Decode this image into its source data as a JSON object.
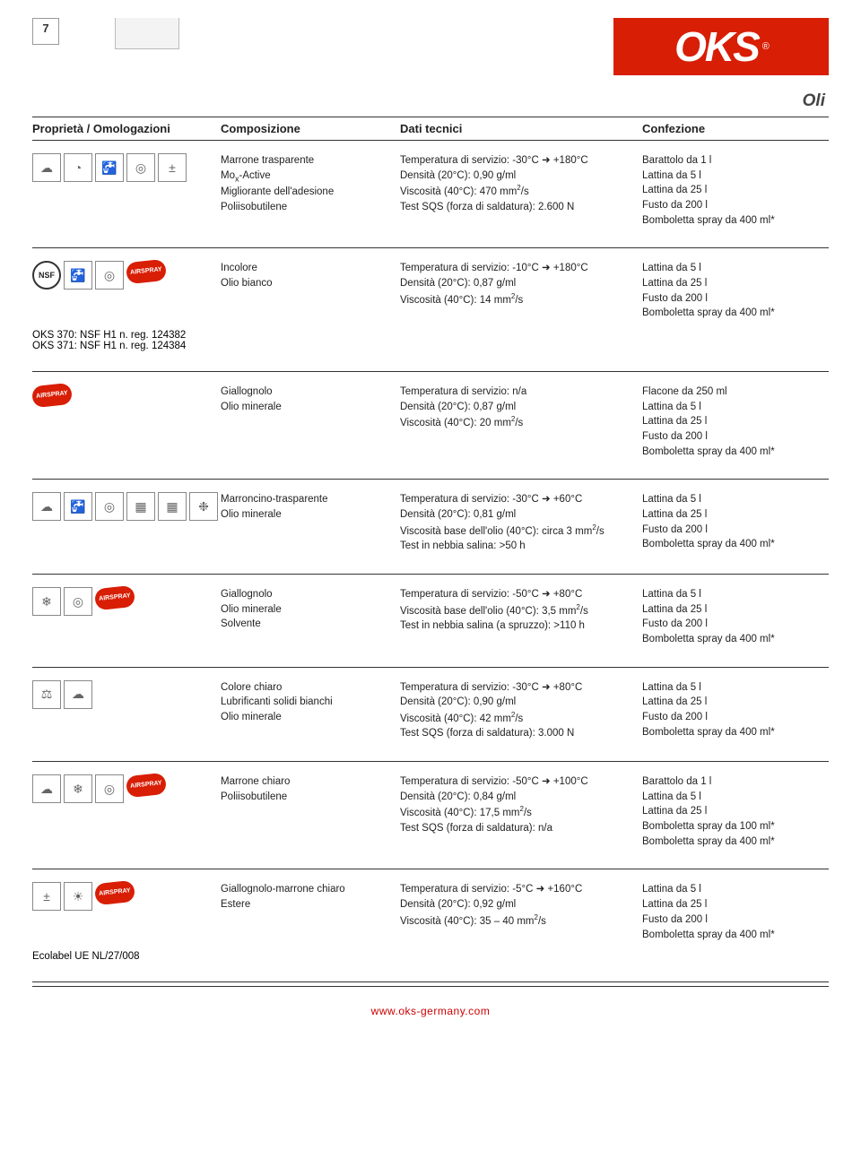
{
  "page_number": "7",
  "logo_text": "OKS",
  "logo_r": "®",
  "logo_bg": "#d81e05",
  "section_label": "Oli",
  "footer_url": "www.oks-germany.com",
  "columns": {
    "a": "Proprietà / Omologazioni",
    "b": "Composizione",
    "c": "Dati tecnici",
    "d": "Confezione"
  },
  "rows": [
    {
      "icons": [
        "weather",
        "gauge",
        "tap",
        "disc",
        "plus-minus"
      ],
      "comp": "Marrone trasparente\nMoₓ-Active\nMigliorante dell'adesione\nPoliisobutilene",
      "tech": "Temperatura di servizio: -30°C ➜ +180°C\nDensità (20°C): 0,90 g/ml\nViscosità (40°C): 470 mm²/s\nTest SQS (forza di saldatura): 2.600 N",
      "conf": "Barattolo da 1 l\nLattina da 5 l\nLattina da 25 l\nFusto da 200 l\nBomboletta spray da 400 ml*",
      "note": ""
    },
    {
      "icons": [
        "nsf",
        "tap",
        "disc",
        "airspray"
      ],
      "comp": "Incolore\nOlio bianco",
      "tech": "Temperatura di servizio: -10°C ➜ +180°C\nDensità (20°C): 0,87 g/ml\nViscosità (40°C): 14 mm²/s",
      "conf": "Lattina da 5 l\nLattina da 25 l\nFusto da 200 l\nBomboletta spray da 400 ml*",
      "note": "OKS 370: NSF H1 n. reg. 124382\nOKS 371: NSF H1 n. reg. 124384"
    },
    {
      "icons": [
        "airspray"
      ],
      "comp": "Giallognolo\nOlio minerale",
      "tech": "Temperatura di servizio: n/a\nDensità (20°C): 0,87 g/ml\nViscosità (40°C): 20 mm²/s",
      "conf": "Flacone da 250 ml\nLattina da 5 l\nLattina da 25 l\nFusto da 200 l\nBomboletta spray da 400 ml*",
      "note": ""
    },
    {
      "icons": [
        "weather",
        "tap",
        "disc",
        "box",
        "box",
        "spray"
      ],
      "comp": "Marroncino-trasparente\nOlio minerale",
      "tech": "Temperatura di servizio: -30°C ➜ +60°C\nDensità (20°C): 0,81 g/ml\nViscosità base dell'olio (40°C): circa 3 mm²/s\nTest in nebbia salina: >50 h",
      "conf": "Lattina da 5 l\nLattina da 25 l\nFusto da 200 l\nBomboletta spray da 400 ml*",
      "note": ""
    },
    {
      "icons": [
        "snow",
        "disc",
        "airspray"
      ],
      "comp": "Giallognolo\nOlio minerale\nSolvente",
      "tech": "Temperatura di servizio: -50°C ➜ +80°C\nViscosità base dell'olio (40°C): 3,5 mm²/s\nTest in nebbia salina (a spruzzo): >110 h",
      "conf": "Lattina da 5 l\nLattina da 25 l\nFusto da 200 l\nBomboletta spray da 400 ml*",
      "note": ""
    },
    {
      "icons": [
        "weight",
        "weather"
      ],
      "comp": "Colore chiaro\nLubrificanti solidi bianchi\nOlio minerale",
      "tech": "Temperatura di servizio: -30°C ➜ +80°C\nDensità (20°C): 0,90 g/ml\nViscosità (40°C): 42 mm²/s\nTest SQS (forza di saldatura): 3.000 N",
      "conf": "Lattina da 5 l\nLattina da 25 l\nFusto da 200 l\nBomboletta spray da 400 ml*",
      "note": ""
    },
    {
      "icons": [
        "weather",
        "snow",
        "disc",
        "airspray"
      ],
      "comp": "Marrone chiaro\nPoliisobutilene",
      "tech": "Temperatura di servizio: -50°C ➜ +100°C\nDensità (20°C): 0,84 g/ml\nViscosità (40°C): 17,5 mm²/s\nTest SQS (forza di saldatura): n/a",
      "conf": "Barattolo da 1 l\nLattina da 5 l\nLattina da 25 l\nBomboletta spray da 100 ml*\nBomboletta spray da 400 ml*",
      "note": ""
    },
    {
      "icons": [
        "plus-minus",
        "sun",
        "airspray"
      ],
      "comp": "Giallognolo-marrone chiaro\nEstere",
      "tech": "Temperatura di servizio: -5°C ➜ +160°C\nDensità (20°C): 0,92 g/ml\nViscosità (40°C): 35 – 40 mm²/s",
      "conf": "Lattina da 5 l\nLattina da 25 l\nFusto da 200 l\nBomboletta spray da 400 ml*",
      "note": "Ecolabel UE NL/27/008"
    }
  ],
  "icon_glyphs": {
    "weather": "☁",
    "gauge": "◔",
    "tap": "🚰",
    "disc": "◎",
    "plus-minus": "±",
    "nsf": "NSF",
    "airspray": "AIRSPRAY",
    "box": "▦",
    "spray": "❉",
    "snow": "❄",
    "weight": "⚖",
    "sun": "☀"
  }
}
